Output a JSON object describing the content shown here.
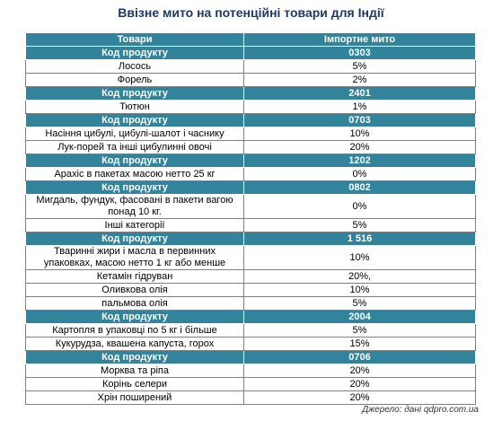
{
  "title": "Ввізне мито на потенційні товари для Індії",
  "table": {
    "header": [
      "Товари",
      "Імпортне мито"
    ],
    "groups": [
      {
        "label": "Код продукту",
        "code": "0303",
        "items": [
          [
            "Лосось",
            "5%"
          ],
          [
            "Форель",
            "2%"
          ]
        ]
      },
      {
        "label": "Код продукту",
        "code": "2401",
        "items": [
          [
            "Тютюн",
            "1%"
          ]
        ]
      },
      {
        "label": "Код продукту",
        "code": "0703",
        "items": [
          [
            "Насіння цибулі, цибулі-шалот і часнику",
            "10%"
          ],
          [
            "Лук-порей та інші цибулинні овочі",
            "20%"
          ]
        ]
      },
      {
        "label": "Код продукту",
        "code": "1202",
        "items": [
          [
            "Арахіс в пакетах масою нетто 25 кг",
            "0%"
          ]
        ]
      },
      {
        "label": "Код продукту",
        "code": "0802",
        "items": [
          [
            "Мигдаль, фундук, фасовані в пакети вагою понад 10 кг.",
            "0%"
          ],
          [
            "Інші категорії",
            "5%"
          ]
        ]
      },
      {
        "label": "Код продукту",
        "code": "1 516",
        "items": [
          [
            "Тваринні жири і масла в первинних упаковках, масою нетто 1 кг або менше",
            "10%"
          ],
          [
            "Кетамін гідруван",
            "20%,"
          ],
          [
            "Оливкова олія",
            "10%"
          ],
          [
            "пальмова олія",
            "5%"
          ]
        ]
      },
      {
        "label": "Код продукту",
        "code": "2004",
        "items": [
          [
            "Картопля в упаковці по 5 кг і більше",
            "5%"
          ],
          [
            "Кукурудза, квашена капуста, горох",
            "15%"
          ]
        ]
      },
      {
        "label": "Код продукту",
        "code": "0706",
        "items": [
          [
            "Морква та ріпа",
            "20%"
          ],
          [
            "Корінь селери",
            "20%"
          ],
          [
            "Хрін поширений",
            "20%"
          ]
        ]
      }
    ]
  },
  "source": "Джерело: дані qdpro.com.ua"
}
